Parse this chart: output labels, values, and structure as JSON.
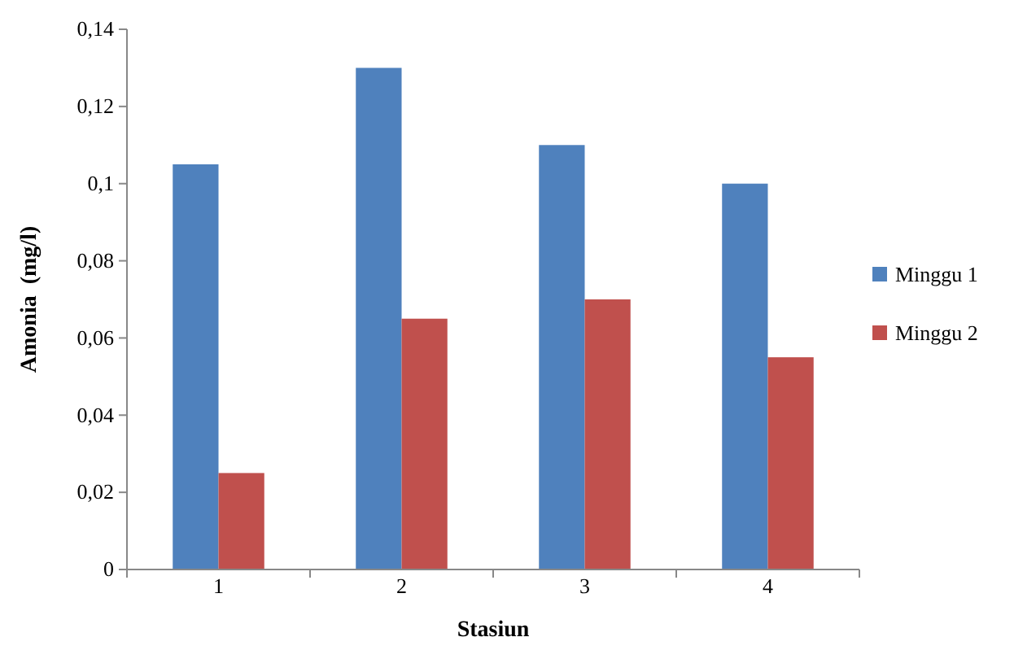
{
  "chart_data": {
    "type": "bar",
    "xlabel": "Stasiun",
    "ylabel": "Amonia  (mg/l)",
    "categories": [
      "1",
      "2",
      "3",
      "4"
    ],
    "series": [
      {
        "name": "Minggu 1",
        "color": "#4f81bd",
        "values": [
          0.105,
          0.13,
          0.11,
          0.1
        ]
      },
      {
        "name": "Minggu 2",
        "color": "#c0504d",
        "values": [
          0.025,
          0.065,
          0.07,
          0.055
        ]
      }
    ],
    "ylim": [
      0,
      0.14
    ],
    "yticks": [
      0,
      {
        "value": 0.02,
        "label": "0,02"
      },
      {
        "value": 0.04,
        "label": "0,04"
      },
      {
        "value": 0.06,
        "label": "0,06"
      },
      {
        "value": 0.08,
        "label": "0,08"
      },
      {
        "value": 0.1,
        "label": "0,1"
      },
      {
        "value": 0.12,
        "label": "0,12"
      },
      {
        "value": 0.14,
        "label": "0,14"
      }
    ],
    "grid": false,
    "legend": "right"
  }
}
